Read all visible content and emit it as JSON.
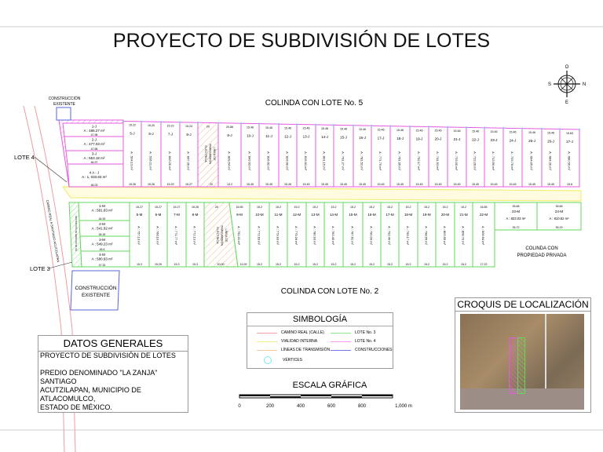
{
  "title": "PROYECTO DE SUBDIVISIÓN DE LOTES",
  "colinda_top": "COLINDA CON LOTE No. 5",
  "colinda_bottom": "COLINDA CON LOTE No. 2",
  "colinda_private": [
    "COLINDA CON",
    "PROPIEDAD PRIVADA"
  ],
  "road_label": "CAMINO REAL A SANTIAGO ACUTZILAPAN",
  "road_label_inner": "RESTRICCIÓN DE DERECHO DE VÍA",
  "lote4_label": "LOTE 4",
  "lote3_label": "LOTE 3",
  "construccion_top": [
    "CONSTRUCCIÓN",
    "EXISTENTE"
  ],
  "construccion_bottom": [
    "CONSTRUCCIÓN",
    "EXISTENTE"
  ],
  "power_line_label": [
    "LÍNEA DE",
    "TRANSMISIÓN",
    "ELÉCTRICA"
  ],
  "compass": {
    "top": "O",
    "left": "S",
    "right": "N",
    "bottom": "E"
  },
  "lots_j_left": [
    {
      "name": "1-J",
      "area": "A : 485.27 m²",
      "dim": "47.98"
    },
    {
      "name": "2-J",
      "area": "A : 477.03 m²",
      "dim": "47.68"
    },
    {
      "name": "3-J",
      "area": "A : 553.18 m²",
      "dim": "46.97"
    },
    {
      "name": "4 A - J",
      "area": "A : 1, 033.83 m²",
      "dim": "46.03"
    }
  ],
  "lots_j": [
    {
      "name": "5-J",
      "area": "A : 504.13 m²",
      "front": "15.22",
      "back": "15.26"
    },
    {
      "name": "6-J",
      "area": "A : 536.21 m²",
      "front": "15.20",
      "back": "15.26"
    },
    {
      "name": "7-J",
      "area": "A : 843.20 m²",
      "front": "15.23",
      "back": "15.29"
    },
    {
      "name": "8-J",
      "area": "A : 847.36 m²",
      "front": "15.24",
      "back": "15.27"
    },
    {
      "name": "",
      "area": "",
      "front": "20",
      "back": "20",
      "power": true
    },
    {
      "name": "9-J",
      "area": "A : 809.54 m²",
      "front": "20.86",
      "back": "13.2"
    },
    {
      "name": "10-J",
      "area": "A : 843.63 m²",
      "front": "15.46",
      "back": "15.45"
    },
    {
      "name": "11-J",
      "area": "A : 835.62 m²",
      "front": "15.46",
      "back": "15.45"
    },
    {
      "name": "12-J",
      "area": "A : 826.60 m²",
      "front": "15.46",
      "back": "15.45"
    },
    {
      "name": "13-J",
      "area": "A : 815.61 m²",
      "front": "15.46",
      "back": "15.45"
    },
    {
      "name": "14-J",
      "area": "A : 801.15 m²",
      "front": "15.46",
      "back": "15.45"
    },
    {
      "name": "15-J",
      "area": "A : 791.27 m²",
      "front": "15.46",
      "back": "15.45"
    },
    {
      "name": "16-J",
      "area": "A : 781.52 m²",
      "front": "15.46",
      "back": "15.45"
    },
    {
      "name": "17-J",
      "area": "A : 771.75 m²",
      "front": "15.46",
      "back": "15.45"
    },
    {
      "name": "18-J",
      "area": "A : 761.95 m²",
      "front": "15.46",
      "back": "15.45"
    },
    {
      "name": "19-J",
      "area": "A : 752.17 m²",
      "front": "15.46",
      "back": "15.45"
    },
    {
      "name": "20-J",
      "area": "A : 741.93 m²",
      "front": "15.46",
      "back": "15.45"
    },
    {
      "name": "21-J",
      "area": "A : 733.00 m²",
      "front": "15.46",
      "back": "15.45"
    },
    {
      "name": "22-J",
      "area": "A : 723.26 m²",
      "front": "15.46",
      "back": "15.45"
    },
    {
      "name": "23-J",
      "area": "A : 713.50 m²",
      "front": "15.46",
      "back": "15.45"
    },
    {
      "name": "24-J",
      "area": "A : 703.76 m²",
      "front": "15.46",
      "back": "15.45"
    },
    {
      "name": "25-J",
      "area": "A : 694.05 m²",
      "front": "15.46",
      "back": "15.45"
    },
    {
      "name": "26-J",
      "area": "A : 684.30 m²",
      "front": "15.46",
      "back": "15.45"
    },
    {
      "name": "27-J",
      "area": "A : 680.50 m²",
      "front": "15.63",
      "back": "15.6"
    }
  ],
  "lots_m_left": [
    {
      "name": "1-M",
      "area": "A : 581.83 m²",
      "dim": "44.92"
    },
    {
      "name": "2-M",
      "area": "A : 541.92 m²",
      "dim": "45.15"
    },
    {
      "name": "3-M",
      "area": "A : 549.23 m²",
      "dim": "45.6"
    },
    {
      "name": "4-M",
      "area": "A : 580.93 m²",
      "dim": "47.32"
    }
  ],
  "lots_m": [
    {
      "name": "5-M",
      "area": "A : 757.13 m²",
      "front": "15.27",
      "back": "15.3"
    },
    {
      "name": "6-M",
      "area": "A : 766.10 m²",
      "front": "15.27",
      "back": "15.29"
    },
    {
      "name": "7-M",
      "area": "A : 771.77 m²",
      "front": "15.27",
      "back": "15.3"
    },
    {
      "name": "8-M",
      "area": "A : 772.13 m²",
      "front": "15.28",
      "back": "15.3"
    },
    {
      "name": "",
      "area": "",
      "front": "20",
      "back": "20.00",
      "power": true
    },
    {
      "name": "9-M",
      "area": "A : 751.01 m²",
      "front": "16.55",
      "back": "11.09"
    },
    {
      "name": "10-M",
      "area": "A : 772.63 m²",
      "front": "15.2",
      "back": "15.2"
    },
    {
      "name": "11-M",
      "area": "A : 779.93 m²",
      "front": "15.2",
      "back": "15.2"
    },
    {
      "name": "12-M",
      "area": "A : 779.26 m²",
      "front": "15.2",
      "back": "15.2"
    },
    {
      "name": "13-M",
      "area": "A : 780.93 m²",
      "front": "15.2",
      "back": "15.2"
    },
    {
      "name": "14-M",
      "area": "A : 783.40 m²",
      "front": "15.2",
      "back": "15.2"
    },
    {
      "name": "15-M",
      "area": "A : 787.61 m²",
      "front": "15.2",
      "back": "15.2"
    },
    {
      "name": "16-M",
      "area": "A : 790.09 m²",
      "front": "15.2",
      "back": "15.2"
    },
    {
      "name": "17-M",
      "area": "A : 792.40 m²",
      "front": "15.2",
      "back": "15.2"
    },
    {
      "name": "18-M",
      "area": "A : 795.17 m²",
      "front": "15.2",
      "back": "15.2"
    },
    {
      "name": "19-M",
      "area": "A : 798.55 m²",
      "front": "15.2",
      "back": "15.2"
    },
    {
      "name": "20-M",
      "area": "A : 803.55 m²",
      "front": "15.2",
      "back": "15.2"
    },
    {
      "name": "21-M",
      "area": "A : 808.70 m²",
      "front": "15.2",
      "back": "15.2"
    },
    {
      "name": "22-M",
      "area": "A : 906.64 m²",
      "front": "16.85",
      "back": "17.22"
    }
  ],
  "lots_m_right": [
    {
      "name": "23-M",
      "area": "A : 823.03 m²",
      "front": "35.68",
      "back": "35.72"
    },
    {
      "name": "24-M",
      "area": "A : 810.62 m²",
      "front": "35.65",
      "back": "35.29"
    }
  ],
  "datos": {
    "title": "DATOS GENERALES",
    "lines": [
      "PROYECTO DE SUBDIVISIÓN DE LOTES",
      "",
      "PREDIO DENOMINADO \"LA ZANJA\"",
      "SANTIAGO",
      "ACUTZILAPAN, MUNICIPIO DE",
      "ATLACOMULCO,",
      "ESTADO DE MÉXICO."
    ]
  },
  "simbologia": {
    "title": "SIMBOLOGÍA",
    "items": [
      {
        "label": "CAMINO REAL (CALLE)",
        "color": "#f4a0a8"
      },
      {
        "label": "VIALIDAD INTERNA",
        "color": "#f3f08a"
      },
      {
        "label": "LÍNEAS DE TRANSMISIÓN",
        "color": "#f8c8a0"
      },
      {
        "label": "VÉRTICES",
        "color": "#7fe8f0"
      },
      {
        "label": "LOTE No. 3",
        "color": "#8ee88a"
      },
      {
        "label": "LOTE No. 4",
        "color": "#f59af0"
      },
      {
        "label": "CONSTRUCCIONES",
        "color": "#6f78e8"
      }
    ]
  },
  "croquis_title": "CROQUIS DE LOCALIZACIÓN",
  "escala": {
    "title": "ESCALA GRÁFICA",
    "ticks": [
      "0",
      "200",
      "400",
      "600",
      "800",
      "1,000 m"
    ]
  },
  "colors": {
    "lote4": "#e75ae0",
    "lote3": "#62d85a",
    "road": "#f29aa3",
    "vialidad": "#f3ee7a",
    "power": "#f5b98a",
    "construccion": "#5a64dd"
  }
}
